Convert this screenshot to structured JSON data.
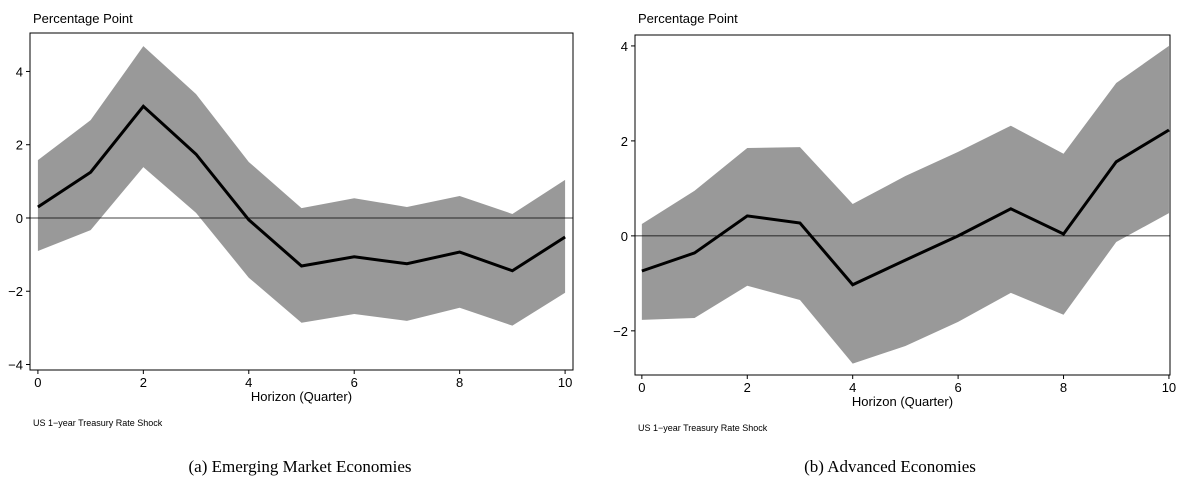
{
  "chart_data": [
    {
      "type": "line",
      "ylabel": "Percentage Point",
      "xlabel": "Horizon (Quarter)",
      "note": "US 1−year Treasury Rate Shock",
      "caption": "(a) Emerging Market Economies",
      "x": [
        0,
        1,
        2,
        3,
        4,
        5,
        6,
        7,
        8,
        9,
        10
      ],
      "values": [
        0.3,
        1.25,
        3.05,
        1.74,
        -0.05,
        -1.31,
        -1.06,
        -1.25,
        -0.93,
        -1.44,
        -0.52
      ],
      "upper": [
        1.58,
        2.67,
        4.69,
        3.38,
        1.53,
        0.27,
        0.54,
        0.3,
        0.6,
        0.11,
        1.04
      ],
      "lower": [
        -0.9,
        -0.33,
        1.39,
        0.14,
        -1.63,
        -2.86,
        -2.62,
        -2.81,
        -2.45,
        -2.94,
        -2.04
      ],
      "color": "#000000",
      "band_color": "#999999",
      "hline": 0,
      "xlim": [
        -0.15,
        10.15
      ],
      "ylim": [
        -4.15,
        5.05
      ],
      "xticks": [
        0,
        2,
        4,
        6,
        8,
        10
      ],
      "yticks": [
        {
          "value": -4,
          "label": "−4"
        },
        {
          "value": -2,
          "label": "−2"
        },
        0,
        2,
        4
      ]
    },
    {
      "type": "line",
      "ylabel": "Percentage Point",
      "xlabel": "Horizon (Quarter)",
      "note": "US 1−year Treasury Rate Shock",
      "caption": "(b) Advanced Economies",
      "x": [
        0,
        1,
        2,
        3,
        4,
        5,
        6,
        7,
        8,
        9,
        10
      ],
      "values": [
        -0.74,
        -0.36,
        0.42,
        0.27,
        -1.03,
        -0.51,
        0.0,
        0.57,
        0.04,
        1.56,
        2.23
      ],
      "upper": [
        0.25,
        0.95,
        1.85,
        1.87,
        0.67,
        1.26,
        1.77,
        2.32,
        1.73,
        3.22,
        4.0
      ],
      "lower": [
        -1.77,
        -1.73,
        -1.05,
        -1.35,
        -2.69,
        -2.32,
        -1.81,
        -1.2,
        -1.66,
        -0.13,
        0.48
      ],
      "color": "#000000",
      "band_color": "#999999",
      "hline": 0,
      "xlim": [
        -0.13,
        10.02
      ],
      "ylim": [
        -2.93,
        4.23
      ],
      "xticks": [
        0,
        2,
        4,
        6,
        8,
        10
      ],
      "yticks": [
        {
          "value": -2,
          "label": "−2"
        },
        0,
        2,
        4
      ]
    }
  ]
}
